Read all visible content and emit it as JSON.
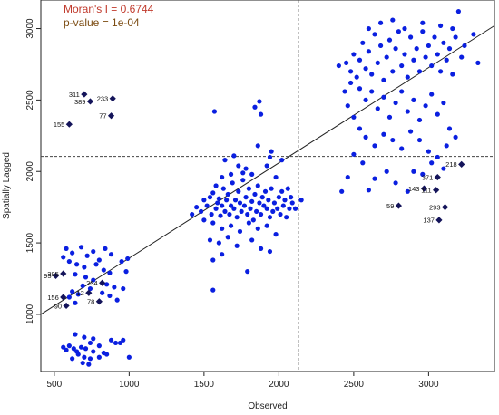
{
  "chart_data": {
    "type": "scatter",
    "xlabel": "Observed",
    "ylabel": "Spatially Lagged",
    "xlim": [
      410,
      3440
    ],
    "ylim": [
      600,
      3200
    ],
    "xticks": [
      500,
      1000,
      1500,
      2000,
      2500,
      3000
    ],
    "yticks": [
      1000,
      1500,
      2000,
      2500,
      3000
    ],
    "grid": false,
    "annotations": {
      "moran": "Moran's I = 0.6744",
      "pvalue": "p-value = 1e-04"
    },
    "reference_lines": {
      "mean_x": 2130,
      "mean_y": 2105
    },
    "regression_line": {
      "x": [
        410,
        3440
      ],
      "y": [
        1000,
        3020
      ]
    },
    "colors": {
      "points": "#0a1fe0",
      "highlight": "#14145a",
      "regression": "#222222",
      "reference": "#444444",
      "moran_text": "#c0392b",
      "pvalue_text": "#7a4a10"
    },
    "highlighted_points": [
      {
        "label": "311",
        "x": 700,
        "y": 2540
      },
      {
        "label": "389",
        "x": 740,
        "y": 2490
      },
      {
        "label": "233",
        "x": 890,
        "y": 2510
      },
      {
        "label": "77",
        "x": 880,
        "y": 2390
      },
      {
        "label": "155",
        "x": 600,
        "y": 2330
      },
      {
        "label": "218",
        "x": 3220,
        "y": 2050
      },
      {
        "label": "371",
        "x": 3060,
        "y": 1960
      },
      {
        "label": "143",
        "x": 2970,
        "y": 1880
      },
      {
        "label": "111",
        "x": 3050,
        "y": 1870
      },
      {
        "label": "59",
        "x": 2800,
        "y": 1760
      },
      {
        "label": "293",
        "x": 3110,
        "y": 1750
      },
      {
        "label": "137",
        "x": 3070,
        "y": 1660
      },
      {
        "label": "95",
        "x": 510,
        "y": 1270
      },
      {
        "label": "385",
        "x": 560,
        "y": 1285
      },
      {
        "label": "234",
        "x": 820,
        "y": 1220
      },
      {
        "label": "12",
        "x": 730,
        "y": 1150
      },
      {
        "label": "156",
        "x": 560,
        "y": 1120
      },
      {
        "label": "78",
        "x": 800,
        "y": 1090
      },
      {
        "label": "90",
        "x": 580,
        "y": 1060
      }
    ],
    "points": [
      [
        560,
        1400
      ],
      [
        580,
        1460
      ],
      [
        620,
        1430
      ],
      [
        680,
        1470
      ],
      [
        720,
        1410
      ],
      [
        760,
        1440
      ],
      [
        800,
        1380
      ],
      [
        840,
        1460
      ],
      [
        880,
        1420
      ],
      [
        950,
        1370
      ],
      [
        990,
        1390
      ],
      [
        600,
        1370
      ],
      [
        650,
        1350
      ],
      [
        700,
        1330
      ],
      [
        780,
        1350
      ],
      [
        830,
        1310
      ],
      [
        870,
        1290
      ],
      [
        980,
        1300
      ],
      [
        640,
        1280
      ],
      [
        710,
        1260
      ],
      [
        760,
        1240
      ],
      [
        850,
        1210
      ],
      [
        900,
        1190
      ],
      [
        960,
        1180
      ],
      [
        690,
        1200
      ],
      [
        740,
        1180
      ],
      [
        820,
        1150
      ],
      [
        870,
        1130
      ],
      [
        920,
        1100
      ],
      [
        620,
        1160
      ],
      [
        660,
        1140
      ],
      [
        600,
        1120
      ],
      [
        640,
        1080
      ],
      [
        560,
        770
      ],
      [
        600,
        780
      ],
      [
        580,
        750
      ],
      [
        630,
        760
      ],
      [
        650,
        740
      ],
      [
        680,
        770
      ],
      [
        710,
        760
      ],
      [
        740,
        800
      ],
      [
        760,
        740
      ],
      [
        800,
        780
      ],
      [
        830,
        730
      ],
      [
        880,
        820
      ],
      [
        910,
        800
      ],
      [
        940,
        800
      ],
      [
        960,
        820
      ],
      [
        1000,
        700
      ],
      [
        660,
        720
      ],
      [
        700,
        700
      ],
      [
        740,
        690
      ],
      [
        800,
        700
      ],
      [
        850,
        720
      ],
      [
        690,
        660
      ],
      [
        730,
        650
      ],
      [
        640,
        860
      ],
      [
        700,
        840
      ],
      [
        760,
        830
      ],
      [
        620,
        690
      ],
      [
        1420,
        1700
      ],
      [
        1450,
        1750
      ],
      [
        1480,
        1720
      ],
      [
        1500,
        1800
      ],
      [
        1520,
        1760
      ],
      [
        1540,
        1820
      ],
      [
        1550,
        1700
      ],
      [
        1560,
        1850
      ],
      [
        1580,
        1740
      ],
      [
        1590,
        1780
      ],
      [
        1600,
        1810
      ],
      [
        1610,
        1690
      ],
      [
        1620,
        1760
      ],
      [
        1630,
        1880
      ],
      [
        1640,
        1720
      ],
      [
        1650,
        1800
      ],
      [
        1660,
        1840
      ],
      [
        1670,
        1700
      ],
      [
        1680,
        1760
      ],
      [
        1690,
        1920
      ],
      [
        1700,
        1740
      ],
      [
        1710,
        1800
      ],
      [
        1720,
        1680
      ],
      [
        1730,
        1860
      ],
      [
        1740,
        1780
      ],
      [
        1750,
        1720
      ],
      [
        1760,
        1940
      ],
      [
        1770,
        1760
      ],
      [
        1780,
        1820
      ],
      [
        1790,
        1700
      ],
      [
        1800,
        1880
      ],
      [
        1810,
        1740
      ],
      [
        1820,
        1790
      ],
      [
        1830,
        1660
      ],
      [
        1840,
        1840
      ],
      [
        1850,
        1720
      ],
      [
        1860,
        1900
      ],
      [
        1870,
        1780
      ],
      [
        1880,
        1700
      ],
      [
        1890,
        1820
      ],
      [
        1900,
        1760
      ],
      [
        1910,
        1860
      ],
      [
        1920,
        1740
      ],
      [
        1930,
        1800
      ],
      [
        1940,
        1680
      ],
      [
        1950,
        1880
      ],
      [
        1960,
        1720
      ],
      [
        1970,
        1780
      ],
      [
        1980,
        1960
      ],
      [
        1990,
        1740
      ],
      [
        2000,
        1820
      ],
      [
        2010,
        1700
      ],
      [
        2020,
        1860
      ],
      [
        2030,
        1760
      ],
      [
        2040,
        1800
      ],
      [
        2050,
        1680
      ],
      [
        2060,
        1880
      ],
      [
        2070,
        1740
      ],
      [
        2080,
        1820
      ],
      [
        2090,
        1780
      ],
      [
        2110,
        1740
      ],
      [
        2150,
        1800
      ],
      [
        1500,
        1660
      ],
      [
        1560,
        1640
      ],
      [
        1620,
        1600
      ],
      [
        1680,
        1620
      ],
      [
        1740,
        1580
      ],
      [
        1800,
        1640
      ],
      [
        1860,
        1600
      ],
      [
        1920,
        1620
      ],
      [
        1980,
        1560
      ],
      [
        1540,
        1520
      ],
      [
        1600,
        1500
      ],
      [
        1660,
        1540
      ],
      [
        1720,
        1480
      ],
      [
        1820,
        1520
      ],
      [
        1880,
        1460
      ],
      [
        1940,
        1440
      ],
      [
        1560,
        1380
      ],
      [
        1620,
        1420
      ],
      [
        1790,
        1300
      ],
      [
        1560,
        1170
      ],
      [
        1570,
        2420
      ],
      [
        1840,
        2450
      ],
      [
        1870,
        2490
      ],
      [
        1880,
        2400
      ],
      [
        1860,
        2180
      ],
      [
        1950,
        2140
      ],
      [
        1730,
        2040
      ],
      [
        1780,
        2020
      ],
      [
        1680,
        1980
      ],
      [
        1620,
        1960
      ],
      [
        1580,
        1900
      ],
      [
        2020,
        2080
      ],
      [
        1940,
        2100
      ],
      [
        1920,
        2040
      ],
      [
        1640,
        2080
      ],
      [
        1700,
        2110
      ],
      [
        1820,
        1980
      ],
      [
        1760,
        1990
      ],
      [
        2400,
        2740
      ],
      [
        2450,
        2760
      ],
      [
        2480,
        2700
      ],
      [
        2500,
        2820
      ],
      [
        2520,
        2660
      ],
      [
        2540,
        2780
      ],
      [
        2560,
        2900
      ],
      [
        2580,
        2720
      ],
      [
        2600,
        2840
      ],
      [
        2620,
        2680
      ],
      [
        2640,
        2960
      ],
      [
        2660,
        2760
      ],
      [
        2680,
        2880
      ],
      [
        2700,
        2640
      ],
      [
        2720,
        2800
      ],
      [
        2740,
        2920
      ],
      [
        2760,
        2700
      ],
      [
        2780,
        2860
      ],
      [
        2800,
        2980
      ],
      [
        2820,
        2740
      ],
      [
        2840,
        2820
      ],
      [
        2860,
        2660
      ],
      [
        2880,
        2940
      ],
      [
        2900,
        2780
      ],
      [
        2920,
        2860
      ],
      [
        2940,
        2700
      ],
      [
        2960,
        2980
      ],
      [
        2980,
        2800
      ],
      [
        3000,
        2880
      ],
      [
        3020,
        2740
      ],
      [
        3040,
        2940
      ],
      [
        3060,
        2820
      ],
      [
        3080,
        2700
      ],
      [
        3100,
        2900
      ],
      [
        3120,
        2780
      ],
      [
        3140,
        2860
      ],
      [
        3160,
        2680
      ],
      [
        3180,
        2940
      ],
      [
        3200,
        3120
      ],
      [
        3220,
        2800
      ],
      [
        3240,
        2880
      ],
      [
        3300,
        2960
      ],
      [
        3330,
        2760
      ],
      [
        2540,
        2580
      ],
      [
        2580,
        2500
      ],
      [
        2620,
        2560
      ],
      [
        2660,
        2440
      ],
      [
        2700,
        2520
      ],
      [
        2740,
        2380
      ],
      [
        2780,
        2480
      ],
      [
        2820,
        2560
      ],
      [
        2860,
        2420
      ],
      [
        2900,
        2500
      ],
      [
        2940,
        2360
      ],
      [
        2980,
        2460
      ],
      [
        3020,
        2540
      ],
      [
        3060,
        2400
      ],
      [
        3100,
        2480
      ],
      [
        3140,
        2300
      ],
      [
        2460,
        2460
      ],
      [
        2500,
        2380
      ],
      [
        2540,
        2300
      ],
      [
        2580,
        2240
      ],
      [
        2640,
        2180
      ],
      [
        2700,
        2260
      ],
      [
        2760,
        2220
      ],
      [
        2820,
        2160
      ],
      [
        2880,
        2280
      ],
      [
        2940,
        2220
      ],
      [
        3000,
        2140
      ],
      [
        3060,
        2100
      ],
      [
        3120,
        2180
      ],
      [
        3180,
        2240
      ],
      [
        2440,
        2560
      ],
      [
        2480,
        2620
      ],
      [
        2600,
        3000
      ],
      [
        2680,
        3040
      ],
      [
        2760,
        3060
      ],
      [
        2840,
        3000
      ],
      [
        2960,
        3040
      ],
      [
        3080,
        3020
      ],
      [
        3160,
        3000
      ],
      [
        2500,
        2120
      ],
      [
        2560,
        2060
      ],
      [
        2420,
        1860
      ],
      [
        2460,
        1960
      ],
      [
        2600,
        1870
      ],
      [
        2640,
        1950
      ],
      [
        2720,
        2000
      ],
      [
        2780,
        1920
      ],
      [
        2900,
        2000
      ],
      [
        2960,
        1980
      ],
      [
        3020,
        2060
      ],
      [
        3100,
        2020
      ],
      [
        2860,
        1860
      ]
    ]
  }
}
